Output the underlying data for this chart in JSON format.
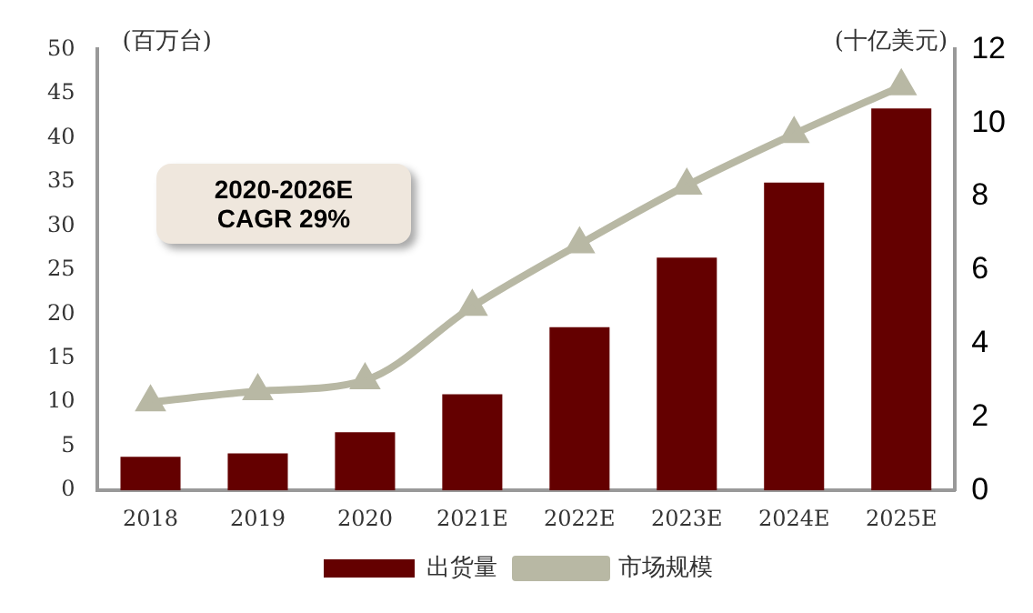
{
  "chart_data": {
    "type": "bar",
    "categories": [
      "2018",
      "2019",
      "2020",
      "2021E",
      "2022E",
      "2023E",
      "2024E",
      "2025E"
    ],
    "series": [
      {
        "name": "出货量",
        "color": "#640000",
        "values": [
          3.8,
          4.2,
          6.6,
          10.9,
          18.5,
          26.4,
          34.9,
          43.3
        ]
      },
      {
        "name": "市场规模",
        "type": "line",
        "axis": "y2",
        "color": "#b8b8a4",
        "values": [
          2.4,
          2.7,
          3.0,
          5.0,
          6.7,
          8.3,
          9.7,
          11.0
        ]
      }
    ],
    "ylabel": "(百万台)",
    "y2label": "(十亿美元)",
    "ylim": [
      0,
      50
    ],
    "yticks": [
      0,
      5,
      10,
      15,
      20,
      25,
      30,
      35,
      40,
      45,
      50
    ],
    "y2lim": [
      0,
      12
    ],
    "y2ticks": [
      0,
      2,
      4,
      6,
      8,
      10,
      12
    ],
    "annotations": [
      "2020-2026E\nCAGR  29%"
    ],
    "legend": "bottom",
    "grid": false,
    "marker": "triangle"
  }
}
